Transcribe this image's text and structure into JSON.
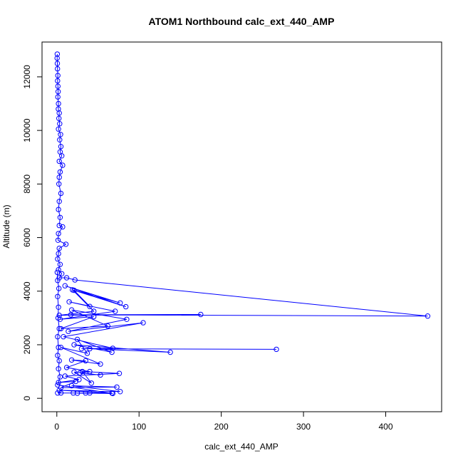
{
  "chart_data": {
    "type": "line",
    "title": "ATOM1 Northbound calc_ext_440_AMP",
    "xlabel": "calc_ext_440_AMP",
    "ylabel": "Altitude (m)",
    "xlim": [
      -18,
      468
    ],
    "ylim": [
      -500,
      13300
    ],
    "xticks": [
      0,
      100,
      200,
      300,
      400
    ],
    "xtick_labels": [
      "0",
      "100",
      "200",
      "300",
      "400"
    ],
    "yticks": [
      0,
      2000,
      4000,
      6000,
      8000,
      10000,
      12000
    ],
    "ytick_labels": [
      "0",
      "2000",
      "4000",
      "6000",
      "8000",
      "10000",
      "12000"
    ],
    "grid": false,
    "series_color": "#0000ff",
    "marker": "open-circle",
    "points": [
      [
        0.5,
        12850
      ],
      [
        0.4,
        12700
      ],
      [
        0.6,
        12500
      ],
      [
        0.8,
        12300
      ],
      [
        1.2,
        12050
      ],
      [
        0.9,
        11850
      ],
      [
        1.3,
        11650
      ],
      [
        1.6,
        11450
      ],
      [
        1.2,
        11250
      ],
      [
        2.0,
        11000
      ],
      [
        1.8,
        10800
      ],
      [
        3.0,
        10650
      ],
      [
        2.5,
        10450
      ],
      [
        3.5,
        10250
      ],
      [
        2.0,
        10050
      ],
      [
        4.5,
        9850
      ],
      [
        3.5,
        9650
      ],
      [
        5.0,
        9400
      ],
      [
        4.0,
        9200
      ],
      [
        6.0,
        9050
      ],
      [
        3.0,
        8850
      ],
      [
        7.0,
        8700
      ],
      [
        4.0,
        8450
      ],
      [
        3.0,
        8250
      ],
      [
        2.5,
        8000
      ],
      [
        5.0,
        7650
      ],
      [
        3.0,
        7350
      ],
      [
        2.0,
        7050
      ],
      [
        4.0,
        6750
      ],
      [
        3.0,
        6450
      ],
      [
        7.0,
        6400
      ],
      [
        2.0,
        6150
      ],
      [
        1.5,
        5900
      ],
      [
        11.0,
        5750
      ],
      [
        3.0,
        5600
      ],
      [
        2.0,
        5400
      ],
      [
        1.0,
        5200
      ],
      [
        4.0,
        5000
      ],
      [
        2.0,
        4800
      ],
      [
        6.0,
        4650
      ],
      [
        3.0,
        4500
      ],
      [
        12.0,
        4500
      ],
      [
        22.0,
        4420
      ],
      [
        451.0,
        3070
      ],
      [
        17.0,
        3120
      ],
      [
        175.0,
        3130
      ],
      [
        3.0,
        3100
      ],
      [
        45.0,
        3250
      ],
      [
        19.0,
        4050
      ],
      [
        77.0,
        3560
      ],
      [
        10.0,
        4200
      ],
      [
        84.0,
        3420
      ],
      [
        21.0,
        4030
      ],
      [
        40.0,
        3430
      ],
      [
        15.0,
        3600
      ],
      [
        71.0,
        3250
      ],
      [
        4.0,
        2950
      ],
      [
        45.0,
        3050
      ],
      [
        5.0,
        2600
      ],
      [
        62.0,
        2700
      ],
      [
        18.0,
        3300
      ],
      [
        85.0,
        2950
      ],
      [
        14.0,
        2500
      ],
      [
        105.0,
        2820
      ],
      [
        8.0,
        2300
      ],
      [
        68.0,
        1870
      ],
      [
        30.0,
        1850
      ],
      [
        267.0,
        1830
      ],
      [
        40.0,
        1850
      ],
      [
        138.0,
        1720
      ],
      [
        21.0,
        2000
      ],
      [
        67.0,
        1720
      ],
      [
        25.0,
        2200
      ],
      [
        37.0,
        1680
      ],
      [
        5.0,
        1900
      ],
      [
        53.0,
        1280
      ],
      [
        18.0,
        1430
      ],
      [
        35.0,
        1400
      ],
      [
        12.0,
        1150
      ],
      [
        40.0,
        1000
      ],
      [
        28.0,
        950
      ],
      [
        53.0,
        870
      ],
      [
        21.0,
        980
      ],
      [
        42.0,
        570
      ],
      [
        31.0,
        1000
      ],
      [
        76.0,
        930
      ],
      [
        10.0,
        830
      ],
      [
        27.0,
        700
      ],
      [
        2.0,
        590
      ],
      [
        23.0,
        630
      ],
      [
        5.0,
        400
      ],
      [
        73.0,
        420
      ],
      [
        18.0,
        470
      ],
      [
        77.0,
        250
      ],
      [
        3.0,
        300
      ],
      [
        67.0,
        200
      ],
      [
        5.0,
        200
      ],
      [
        40.0,
        200
      ],
      [
        1.0,
        200
      ],
      [
        20.0,
        200
      ],
      [
        35.0,
        200
      ],
      [
        25.0,
        190
      ],
      [
        68.0,
        180
      ],
      [
        1.0,
        500
      ],
      [
        4.0,
        800
      ],
      [
        2.0,
        1100
      ],
      [
        3.0,
        1400
      ],
      [
        1.0,
        1600
      ],
      [
        2.0,
        1900
      ],
      [
        1.0,
        2300
      ],
      [
        3.0,
        2600
      ],
      [
        1.5,
        3000
      ],
      [
        2.0,
        3400
      ],
      [
        1.0,
        3800
      ],
      [
        2.5,
        4100
      ],
      [
        1.0,
        4400
      ],
      [
        0.5,
        4700
      ]
    ]
  }
}
